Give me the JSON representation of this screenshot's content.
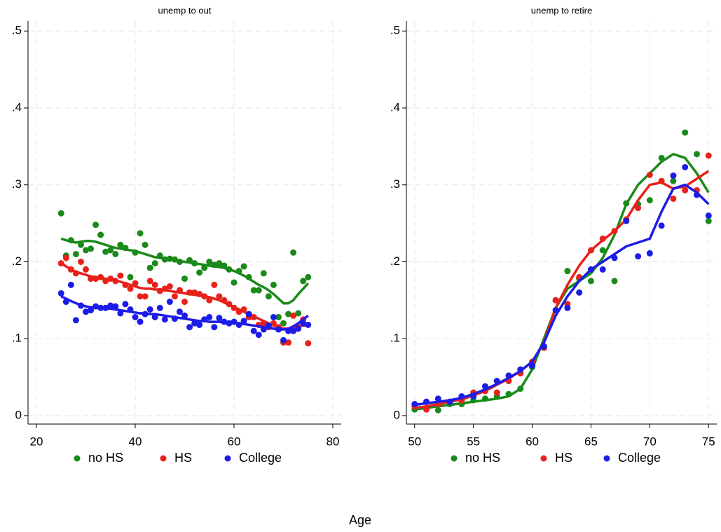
{
  "xlabel": "Age",
  "chart_data": [
    {
      "type": "scatter",
      "title": "unemp to out",
      "xlim": [
        18.3,
        81.7
      ],
      "xticks": [
        20,
        40,
        60,
        80
      ],
      "ylim": [
        -0.011,
        0.513
      ],
      "yticks": [
        0,
        {
          "value": 0.1,
          "label": ".1"
        },
        {
          "value": 0.2,
          "label": ".2"
        },
        {
          "value": 0.3,
          "label": ".3"
        },
        {
          "value": 0.4,
          "label": ".4"
        },
        {
          "value": 0.5,
          "label": ".5"
        }
      ],
      "grid": true,
      "x": [
        25,
        26,
        27,
        28,
        29,
        30,
        31,
        32,
        33,
        34,
        35,
        36,
        37,
        38,
        39,
        40,
        41,
        42,
        43,
        44,
        45,
        46,
        47,
        48,
        49,
        50,
        51,
        52,
        53,
        54,
        55,
        56,
        57,
        58,
        59,
        60,
        61,
        62,
        63,
        64,
        65,
        66,
        67,
        68,
        69,
        70,
        71,
        72,
        73,
        74,
        75
      ],
      "series": [
        {
          "name": "no HS",
          "color": "#1a8a1a",
          "values": [
            0.263,
            0.208,
            0.228,
            0.21,
            0.222,
            0.215,
            0.217,
            0.248,
            0.235,
            0.213,
            0.215,
            0.21,
            0.222,
            0.218,
            0.18,
            0.212,
            0.237,
            0.222,
            0.192,
            0.198,
            0.208,
            0.203,
            0.204,
            0.203,
            0.2,
            0.178,
            0.202,
            0.198,
            0.186,
            0.192,
            0.2,
            0.196,
            0.198,
            0.195,
            0.19,
            0.173,
            0.188,
            0.194,
            0.18,
            0.163,
            0.163,
            0.185,
            0.155,
            0.17,
            0.128,
            0.12,
            0.132,
            0.212,
            0.133,
            0.175,
            0.18
          ],
          "fit": [
            0.23,
            0.228,
            0.226,
            0.225,
            0.226,
            0.227,
            0.227,
            0.226,
            0.224,
            0.222,
            0.22,
            0.218,
            0.217,
            0.216,
            0.215,
            0.214,
            0.212,
            0.21,
            0.208,
            0.206,
            0.205,
            0.204,
            0.203,
            0.202,
            0.201,
            0.2,
            0.199,
            0.198,
            0.197,
            0.196,
            0.195,
            0.194,
            0.193,
            0.192,
            0.19,
            0.188,
            0.185,
            0.182,
            0.178,
            0.174,
            0.17,
            0.167,
            0.163,
            0.158,
            0.152,
            0.146,
            0.146,
            0.15,
            0.158,
            0.165,
            0.172
          ]
        },
        {
          "name": "HS",
          "color": "#e8211b",
          "values": [
            0.198,
            0.205,
            0.19,
            0.185,
            0.2,
            0.19,
            0.178,
            0.178,
            0.18,
            0.175,
            0.178,
            0.175,
            0.182,
            0.17,
            0.165,
            0.172,
            0.155,
            0.155,
            0.175,
            0.17,
            0.162,
            0.165,
            0.168,
            0.155,
            0.163,
            0.148,
            0.16,
            0.16,
            0.158,
            0.155,
            0.15,
            0.17,
            0.155,
            0.15,
            0.145,
            0.14,
            0.135,
            0.138,
            0.128,
            0.128,
            0.118,
            0.12,
            0.115,
            0.12,
            0.115,
            0.095,
            0.095,
            0.13,
            0.115,
            0.125,
            0.094
          ],
          "fit": [
            0.198,
            0.194,
            0.19,
            0.187,
            0.185,
            0.183,
            0.181,
            0.18,
            0.179,
            0.178,
            0.177,
            0.176,
            0.174,
            0.172,
            0.17,
            0.168,
            0.166,
            0.165,
            0.165,
            0.164,
            0.164,
            0.163,
            0.162,
            0.161,
            0.16,
            0.159,
            0.158,
            0.157,
            0.156,
            0.155,
            0.154,
            0.152,
            0.15,
            0.147,
            0.144,
            0.141,
            0.138,
            0.135,
            0.132,
            0.129,
            0.126,
            0.123,
            0.12,
            0.117,
            0.115,
            0.113,
            0.113,
            0.114,
            0.116,
            0.117,
            0.117
          ]
        },
        {
          "name": "College",
          "color": "#1c1ce8",
          "values": [
            0.159,
            0.148,
            0.17,
            0.124,
            0.143,
            0.135,
            0.137,
            0.142,
            0.14,
            0.14,
            0.143,
            0.142,
            0.133,
            0.145,
            0.138,
            0.128,
            0.122,
            0.132,
            0.138,
            0.128,
            0.14,
            0.125,
            0.148,
            0.126,
            0.135,
            0.13,
            0.115,
            0.12,
            0.118,
            0.125,
            0.128,
            0.115,
            0.127,
            0.122,
            0.12,
            0.122,
            0.118,
            0.123,
            0.132,
            0.11,
            0.105,
            0.112,
            0.117,
            0.128,
            0.112,
            0.098,
            0.11,
            0.11,
            0.113,
            0.12,
            0.118
          ],
          "fit": [
            0.155,
            0.152,
            0.149,
            0.146,
            0.144,
            0.142,
            0.141,
            0.14,
            0.14,
            0.139,
            0.139,
            0.138,
            0.137,
            0.136,
            0.135,
            0.134,
            0.133,
            0.133,
            0.132,
            0.132,
            0.131,
            0.13,
            0.129,
            0.128,
            0.127,
            0.126,
            0.125,
            0.124,
            0.123,
            0.123,
            0.122,
            0.122,
            0.122,
            0.121,
            0.121,
            0.12,
            0.12,
            0.119,
            0.118,
            0.117,
            0.116,
            0.115,
            0.114,
            0.113,
            0.112,
            0.112,
            0.113,
            0.116,
            0.12,
            0.125,
            0.13
          ]
        }
      ]
    },
    {
      "type": "scatter",
      "title": "unemp to retire",
      "xlim": [
        49.3,
        75.7
      ],
      "xticks": [
        50,
        55,
        60,
        65,
        70,
        75
      ],
      "ylim": [
        -0.011,
        0.513
      ],
      "yticks": [
        0,
        {
          "value": 0.1,
          "label": ".1"
        },
        {
          "value": 0.2,
          "label": ".2"
        },
        {
          "value": 0.3,
          "label": ".3"
        },
        {
          "value": 0.4,
          "label": ".4"
        },
        {
          "value": 0.5,
          "label": ".5"
        }
      ],
      "grid": true,
      "x": [
        50,
        51,
        52,
        53,
        54,
        55,
        56,
        57,
        58,
        59,
        60,
        61,
        62,
        63,
        64,
        65,
        66,
        67,
        68,
        69,
        70,
        71,
        72,
        73,
        74,
        75
      ],
      "series": [
        {
          "name": "no HS",
          "color": "#1a8a1a",
          "values": [
            0.008,
            0.01,
            0.007,
            0.015,
            0.015,
            0.02,
            0.022,
            0.025,
            0.028,
            0.035,
            0.063,
            0.09,
            0.15,
            0.188,
            0.178,
            0.175,
            0.215,
            0.175,
            0.276,
            0.275,
            0.28,
            0.335,
            0.305,
            0.368,
            0.34,
            0.253
          ],
          "fit": [
            0.008,
            0.01,
            0.012,
            0.014,
            0.016,
            0.018,
            0.02,
            0.022,
            0.025,
            0.035,
            0.06,
            0.1,
            0.14,
            0.165,
            0.175,
            0.185,
            0.205,
            0.235,
            0.275,
            0.3,
            0.315,
            0.33,
            0.34,
            0.335,
            0.315,
            0.29
          ]
        },
        {
          "name": "HS",
          "color": "#e8211b",
          "values": [
            0.012,
            0.008,
            0.015,
            0.018,
            0.02,
            0.03,
            0.032,
            0.03,
            0.045,
            0.055,
            0.07,
            0.088,
            0.15,
            0.145,
            0.18,
            0.215,
            0.23,
            0.24,
            0.255,
            0.27,
            0.313,
            0.305,
            0.282,
            0.293,
            0.293,
            0.338
          ],
          "fit": [
            0.01,
            0.012,
            0.015,
            0.018,
            0.021,
            0.026,
            0.032,
            0.04,
            0.048,
            0.058,
            0.07,
            0.095,
            0.14,
            0.17,
            0.195,
            0.215,
            0.228,
            0.24,
            0.255,
            0.28,
            0.3,
            0.303,
            0.295,
            0.298,
            0.308,
            0.318
          ]
        },
        {
          "name": "College",
          "color": "#1c1ce8",
          "values": [
            0.015,
            0.018,
            0.022,
            0.018,
            0.025,
            0.025,
            0.038,
            0.045,
            0.052,
            0.06,
            0.065,
            0.09,
            0.137,
            0.14,
            0.16,
            0.19,
            0.19,
            0.205,
            0.253,
            0.207,
            0.211,
            0.247,
            0.312,
            0.323,
            0.287,
            0.26
          ],
          "fit": [
            0.014,
            0.016,
            0.018,
            0.02,
            0.023,
            0.028,
            0.034,
            0.041,
            0.049,
            0.058,
            0.07,
            0.095,
            0.13,
            0.155,
            0.175,
            0.19,
            0.2,
            0.21,
            0.22,
            0.225,
            0.23,
            0.265,
            0.295,
            0.3,
            0.29,
            0.275
          ]
        }
      ]
    }
  ]
}
